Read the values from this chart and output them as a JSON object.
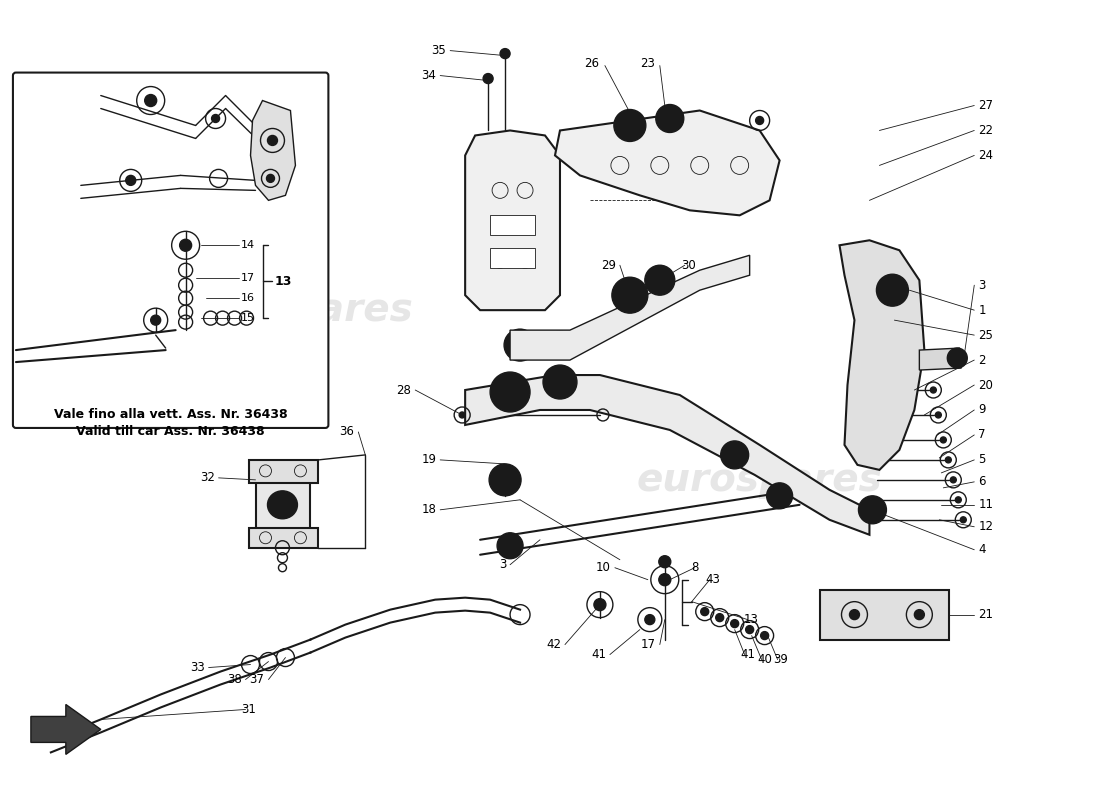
{
  "bg_color": "#ffffff",
  "line_color": "#1a1a1a",
  "fig_width": 11.0,
  "fig_height": 8.0,
  "inset_text_line1": "Vale fino alla vett. Ass. Nr. 36438",
  "inset_text_line2": "Valid till car Ass. Nr. 36438",
  "watermark_text": "eurospares",
  "lw_thin": 0.6,
  "lw_main": 1.0,
  "lw_thick": 1.5
}
